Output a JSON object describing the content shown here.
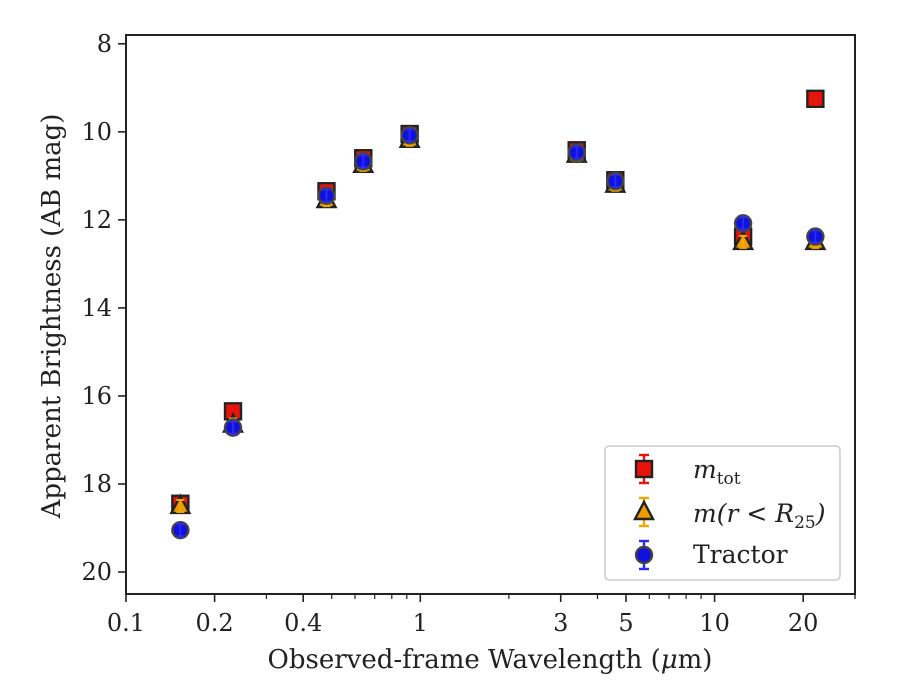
{
  "chart_data": {
    "type": "scatter",
    "xlabel": "Observed-frame Wavelength (",
    "xlabel_mu": "μ",
    "xlabel_unit": "m)",
    "ylabel": "Apparent Brightness (AB mag)",
    "x_scale": "log",
    "xlim": [
      0.1,
      30
    ],
    "ylim": [
      20.5,
      7.8
    ],
    "y_inverted": true,
    "grid": false,
    "legend_position": "lower-right",
    "x_ticks": [
      {
        "value": 0.1,
        "label": "0.1"
      },
      {
        "value": 0.2,
        "label": "0.2"
      },
      {
        "value": 0.4,
        "label": "0.4"
      },
      {
        "value": 1,
        "label": "1"
      },
      {
        "value": 3,
        "label": "3"
      },
      {
        "value": 5,
        "label": "5"
      },
      {
        "value": 10,
        "label": "10"
      },
      {
        "value": 20,
        "label": "20"
      }
    ],
    "y_ticks": [
      {
        "value": 8,
        "label": "8"
      },
      {
        "value": 10,
        "label": "10"
      },
      {
        "value": 12,
        "label": "12"
      },
      {
        "value": 14,
        "label": "14"
      },
      {
        "value": 16,
        "label": "16"
      },
      {
        "value": 18,
        "label": "18"
      },
      {
        "value": 20,
        "label": "20"
      }
    ],
    "series": [
      {
        "name": "m_tot",
        "legend_main": "m",
        "legend_sub": "tot",
        "marker": "square",
        "fill": "#e8140c",
        "error_color": "#e8140c",
        "x": [
          0.153,
          0.231,
          0.48,
          0.64,
          0.92,
          3.4,
          4.6,
          12.5,
          22.0
        ],
        "y": [
          18.45,
          16.35,
          11.35,
          10.6,
          10.05,
          10.42,
          11.1,
          12.38,
          9.25
        ]
      },
      {
        "name": "m(r < R25)",
        "legend_main": "m(r < R",
        "legend_sub": "25",
        "legend_tail": ")",
        "marker": "triangle",
        "fill": "#f09a00",
        "error_color": "#f0a800",
        "x": [
          0.153,
          0.231,
          0.48,
          0.64,
          0.92,
          3.4,
          4.6,
          12.5,
          22.0
        ],
        "y": [
          18.5,
          16.65,
          11.55,
          10.75,
          10.18,
          10.52,
          11.2,
          12.5,
          12.5
        ]
      },
      {
        "name": "Tractor",
        "legend_main": "Tractor",
        "marker": "circle",
        "fill": "#1010e0",
        "error_color": "#2a2af0",
        "x": [
          0.153,
          0.231,
          0.48,
          0.64,
          0.92,
          3.4,
          4.6,
          12.5,
          22.0
        ],
        "y": [
          19.05,
          16.72,
          11.45,
          10.67,
          10.08,
          10.47,
          11.12,
          12.08,
          12.38
        ]
      }
    ]
  }
}
